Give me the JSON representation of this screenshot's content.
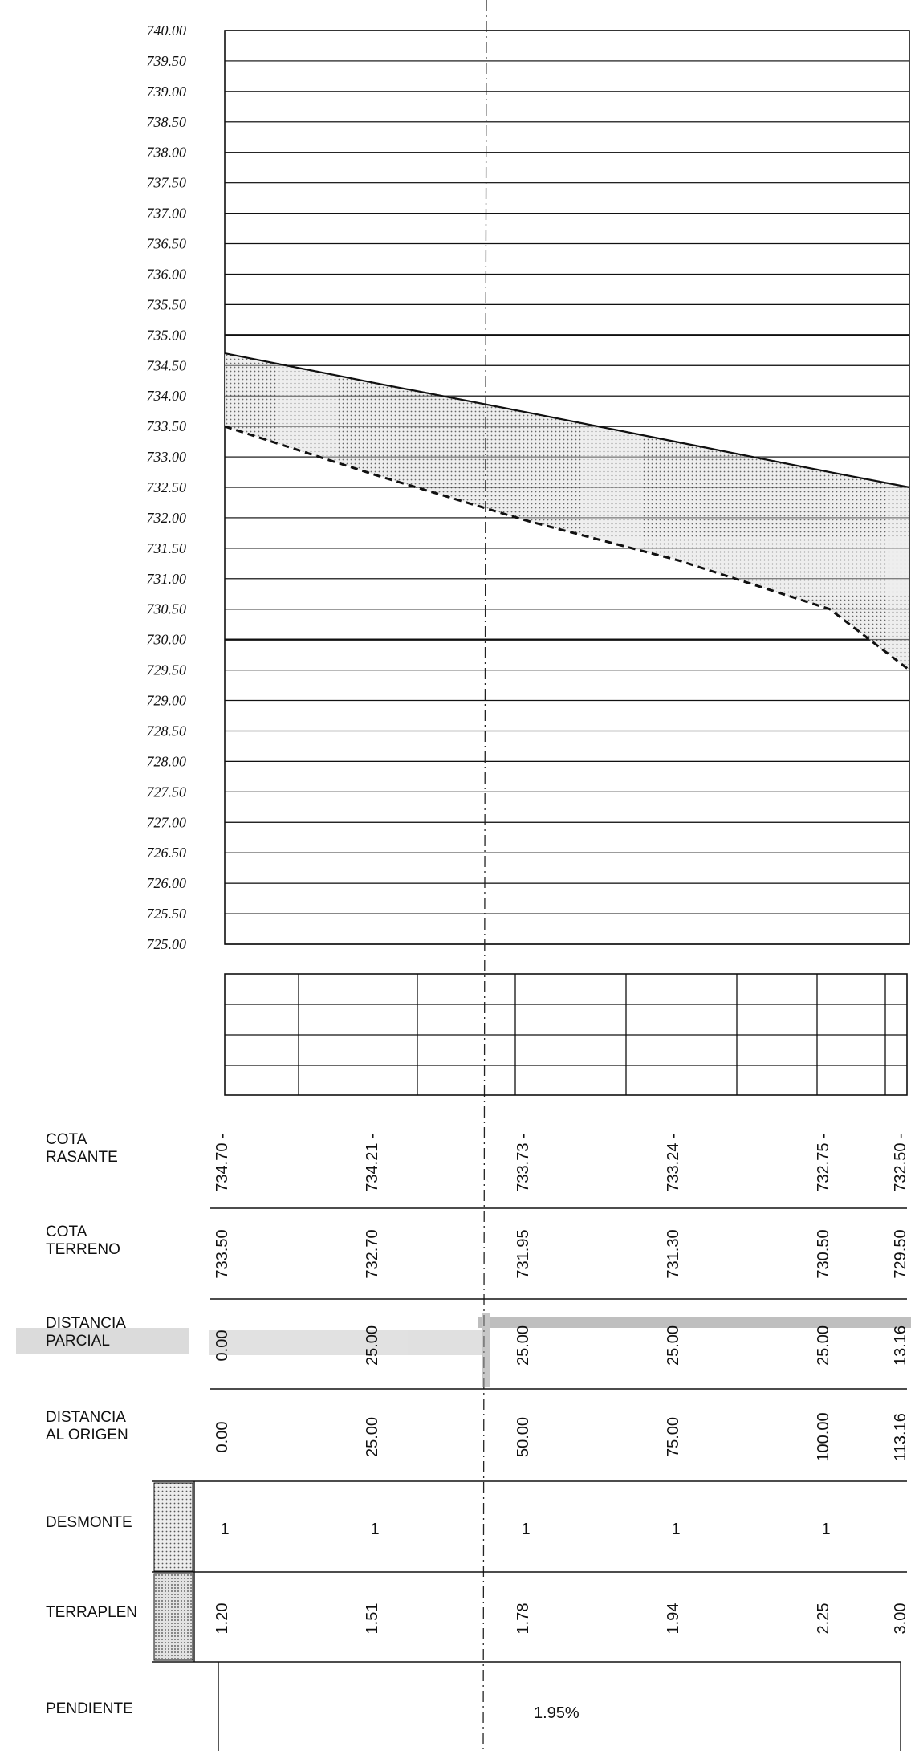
{
  "chart_data": {
    "type": "line",
    "elevation_ticks": [
      "740.00",
      "739.50",
      "739.00",
      "738.50",
      "738.00",
      "737.50",
      "737.00",
      "736.50",
      "736.00",
      "735.50",
      "735.00",
      "734.50",
      "734.00",
      "733.50",
      "733.00",
      "732.50",
      "732.00",
      "731.50",
      "731.00",
      "730.50",
      "730.00",
      "729.50",
      "729.00",
      "728.50",
      "728.00",
      "727.50",
      "727.00",
      "726.50",
      "726.00",
      "725.50",
      "725.00"
    ],
    "ylim": [
      725,
      740
    ],
    "xlim": [
      0,
      113.16
    ],
    "x": [
      0,
      25,
      50,
      75,
      100,
      113.16
    ],
    "series": [
      {
        "values": [
          734.7,
          734.21,
          733.73,
          733.24,
          732.75,
          732.5
        ],
        "style": "solid"
      },
      {
        "values": [
          733.5,
          732.7,
          731.95,
          731.3,
          730.5,
          729.5
        ],
        "style": "dashed"
      }
    ],
    "guide_levels": [
      735.0,
      730.0
    ],
    "fill": "cut area between rasante and terreno, dotted grey"
  },
  "table": {
    "rows": [
      {
        "label": [
          "COTA",
          "RASANTE"
        ],
        "values": [
          "734.70 -",
          "734.21 -",
          "733.73 -",
          "733.24 -",
          "732.75 -",
          "732.50 -"
        ]
      },
      {
        "label": [
          "COTA",
          "TERRENO"
        ],
        "values": [
          "733.50",
          "732.70",
          "731.95",
          "731.30",
          "730.50",
          "729.50"
        ]
      },
      {
        "label": [
          "DISTANCIA",
          "PARCIAL"
        ],
        "values": [
          "0.00",
          "25.00",
          "25.00",
          "25.00",
          "25.00",
          "13.16"
        ]
      },
      {
        "label": [
          "DISTANCIA",
          "AL ORIGEN"
        ],
        "values": [
          "0.00",
          "25.00",
          "50.00",
          "75.00",
          "100.00",
          "113.16"
        ]
      },
      {
        "label": [
          "DESMONTE"
        ],
        "values": [
          "1",
          "1",
          "1",
          "1",
          "1",
          ""
        ]
      },
      {
        "label": [
          "TERRAPLEN"
        ],
        "values": [
          "1.20",
          "1.51",
          "1.78",
          "1.94",
          "2.25",
          "3.00"
        ]
      }
    ],
    "slope": {
      "label": "PENDIENTE",
      "value": "1.95%"
    }
  }
}
